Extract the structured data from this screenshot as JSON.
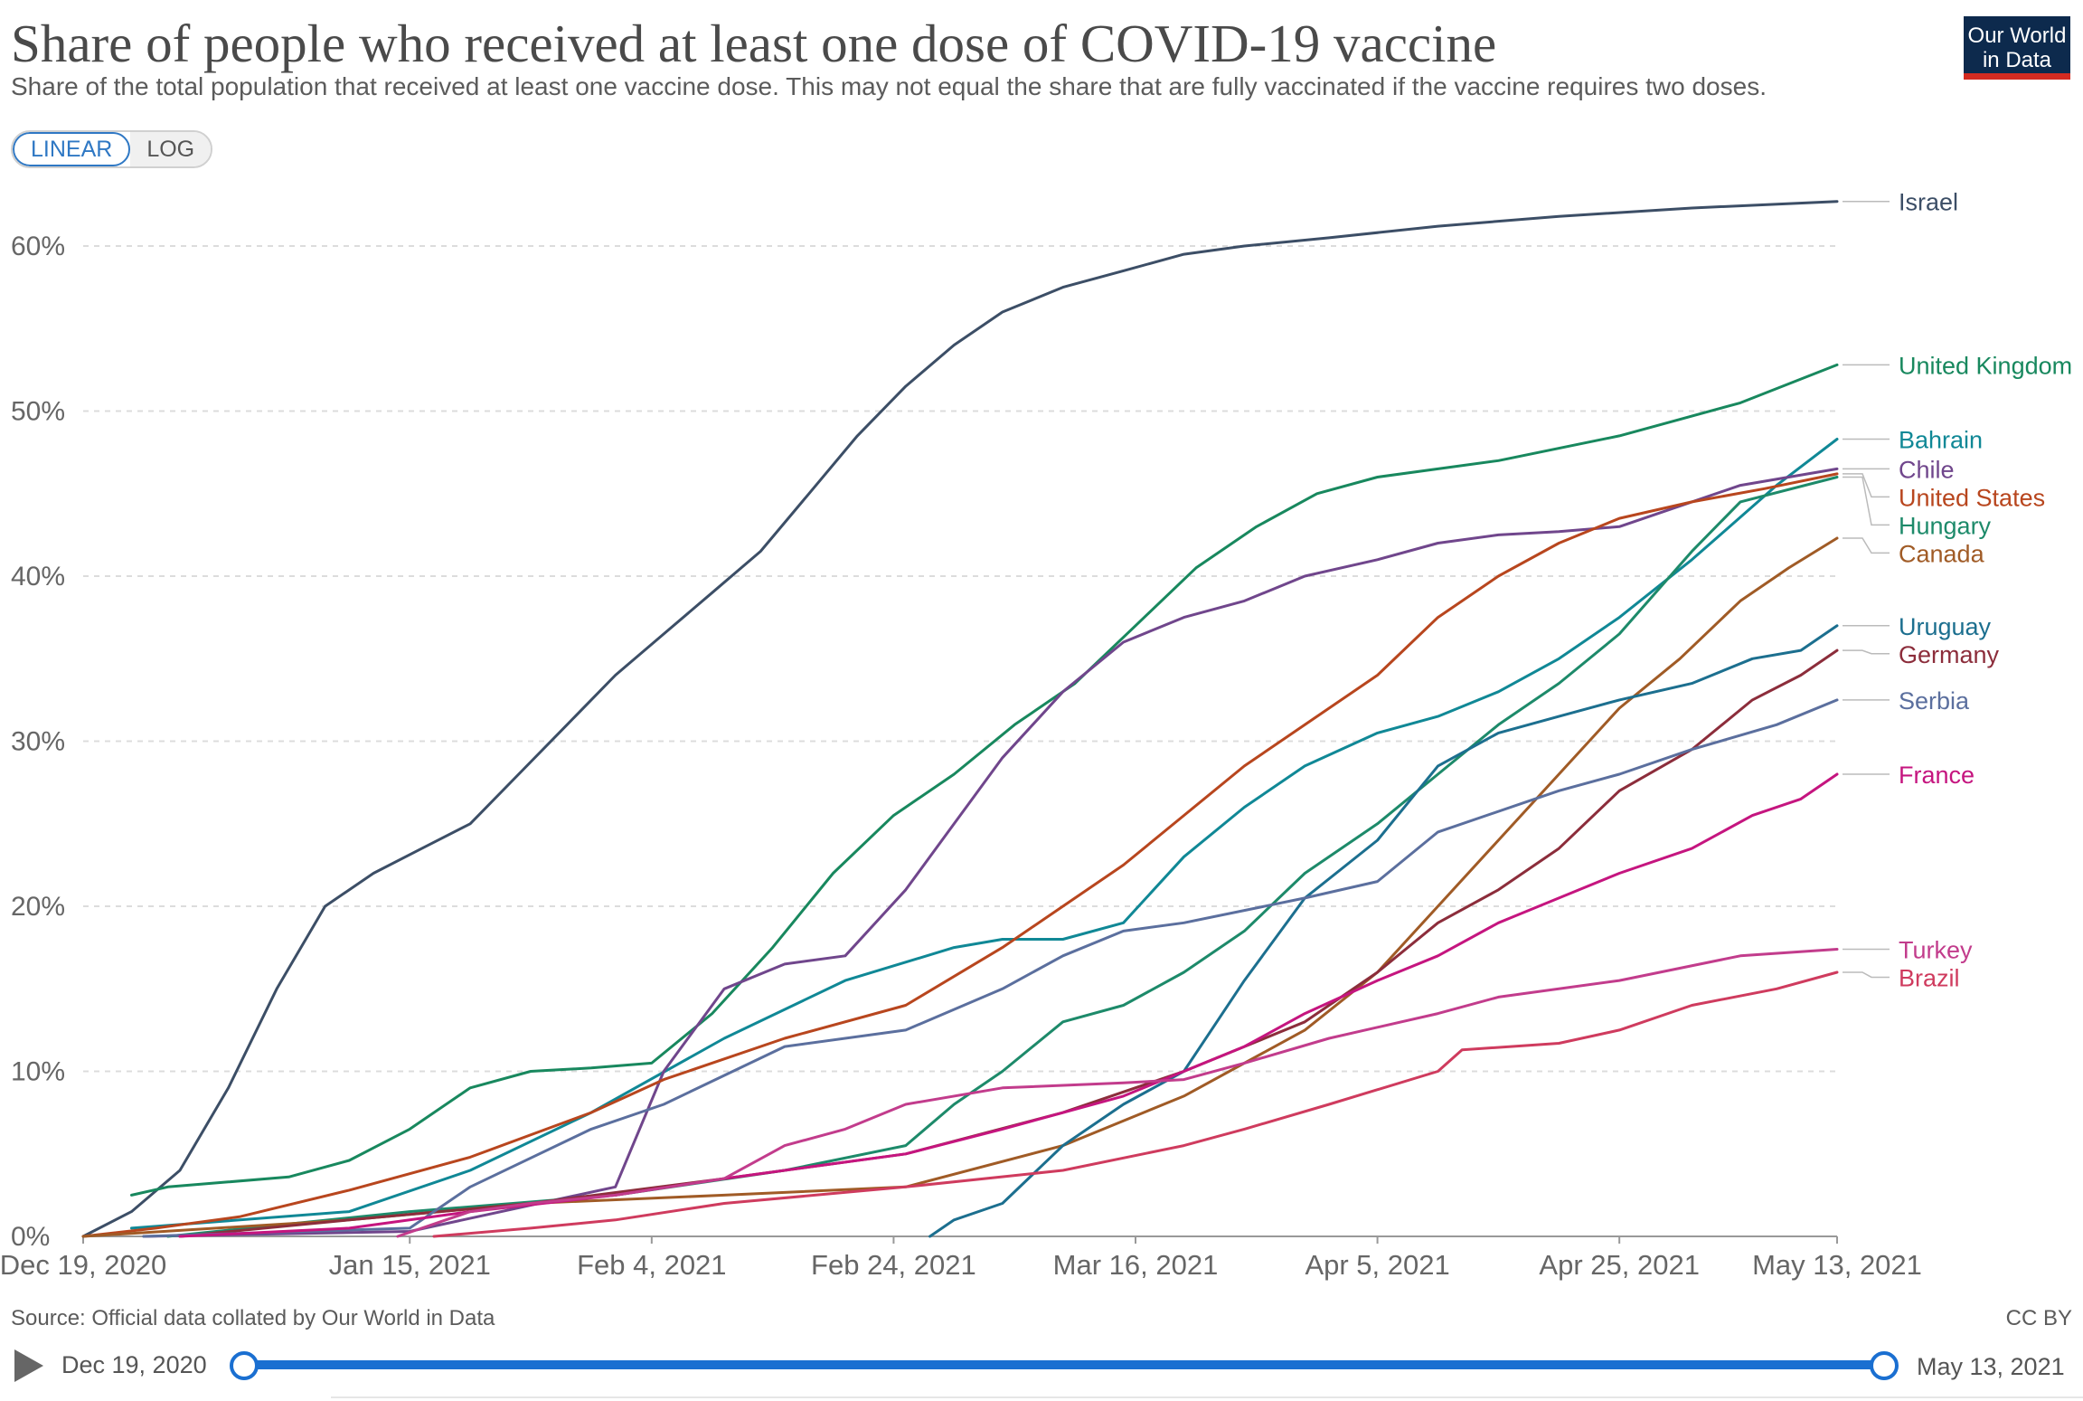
{
  "header": {
    "title": "Share of people who received at least one dose of COVID-19 vaccine",
    "subtitle": "Share of the total population that received at least one vaccine dose. This may not equal the share that are fully vaccinated if the vaccine requires two doses.",
    "logo_line1": "Our World",
    "logo_line2": "in Data"
  },
  "scale_toggle": {
    "linear": "LINEAR",
    "log": "LOG",
    "selected": "LINEAR"
  },
  "footer": {
    "source": "Source: Official data collated by Our World in Data",
    "license": "CC BY"
  },
  "timeline": {
    "start": "Dec 19, 2020",
    "end": "May 13, 2021"
  },
  "chart_data": {
    "type": "line",
    "title": "Share of people who received at least one dose of COVID-19 vaccine",
    "xlabel": "",
    "ylabel": "",
    "x_start": "2020-12-19",
    "x_end": "2021-05-13",
    "xlim": [
      "2020-12-19",
      "2021-05-13"
    ],
    "ylim": [
      0,
      64
    ],
    "y_ticks": [
      0,
      10,
      20,
      30,
      40,
      50,
      60
    ],
    "y_tick_labels": [
      "0%",
      "10%",
      "20%",
      "30%",
      "40%",
      "50%",
      "60%"
    ],
    "x_ticks": [
      "2020-12-19",
      "2021-01-15",
      "2021-02-04",
      "2021-02-24",
      "2021-03-16",
      "2021-04-05",
      "2021-04-25",
      "2021-05-13"
    ],
    "x_tick_labels": [
      "Dec 19, 2020",
      "Jan 15, 2021",
      "Feb 4, 2021",
      "Feb 24, 2021",
      "Mar 16, 2021",
      "Apr 5, 2021",
      "Apr 25, 2021",
      "May 13, 2021"
    ],
    "grid": "horizontal dashed",
    "legend": "right, line-end labels",
    "series": [
      {
        "name": "Israel",
        "color": "#3c4e66",
        "x": [
          "2020-12-19",
          "2020-12-23",
          "2020-12-27",
          "2020-12-31",
          "2021-01-04",
          "2021-01-08",
          "2021-01-12",
          "2021-01-16",
          "2021-01-20",
          "2021-01-24",
          "2021-01-28",
          "2021-02-01",
          "2021-02-05",
          "2021-02-09",
          "2021-02-13",
          "2021-02-17",
          "2021-02-21",
          "2021-02-25",
          "2021-03-01",
          "2021-03-05",
          "2021-03-10",
          "2021-03-15",
          "2021-03-20",
          "2021-03-25",
          "2021-04-01",
          "2021-04-10",
          "2021-04-20",
          "2021-05-01",
          "2021-05-13"
        ],
        "y": [
          0,
          1.5,
          4,
          9,
          15,
          20,
          22,
          23.5,
          25,
          28,
          31,
          34,
          36.5,
          39,
          41.5,
          45,
          48.5,
          51.5,
          54,
          56,
          57.5,
          58.5,
          59.5,
          60,
          60.5,
          61.2,
          61.8,
          62.3,
          62.7
        ]
      },
      {
        "name": "United Kingdom",
        "color": "#18885e",
        "x": [
          "2020-12-23",
          "2020-12-26",
          "2020-12-31",
          "2021-01-05",
          "2021-01-10",
          "2021-01-15",
          "2021-01-20",
          "2021-01-25",
          "2021-01-30",
          "2021-02-04",
          "2021-02-09",
          "2021-02-14",
          "2021-02-19",
          "2021-02-24",
          "2021-03-01",
          "2021-03-06",
          "2021-03-11",
          "2021-03-16",
          "2021-03-21",
          "2021-03-26",
          "2021-03-31",
          "2021-04-05",
          "2021-04-15",
          "2021-04-25",
          "2021-05-05",
          "2021-05-13"
        ],
        "y": [
          2.5,
          3,
          3.3,
          3.6,
          4.6,
          6.5,
          9,
          10,
          10.2,
          10.5,
          13.5,
          17.5,
          22,
          25.5,
          28,
          31,
          33.5,
          37,
          40.5,
          43,
          45,
          46,
          47,
          48.5,
          50.5,
          52.8
        ]
      },
      {
        "name": "Bahrain",
        "color": "#108896",
        "x": [
          "2020-12-23",
          "2021-01-10",
          "2021-01-20",
          "2021-01-30",
          "2021-02-10",
          "2021-02-20",
          "2021-03-01",
          "2021-03-05",
          "2021-03-10",
          "2021-03-15",
          "2021-03-20",
          "2021-03-25",
          "2021-03-30",
          "2021-04-05",
          "2021-04-10",
          "2021-04-15",
          "2021-04-20",
          "2021-04-25",
          "2021-05-01",
          "2021-05-08",
          "2021-05-13"
        ],
        "y": [
          0.5,
          1.5,
          4,
          7.5,
          12,
          15.5,
          17.5,
          18,
          18,
          19,
          23,
          26,
          28.5,
          30.5,
          31.5,
          33,
          35,
          37.5,
          41,
          45.5,
          48.3
        ]
      },
      {
        "name": "Chile",
        "color": "#70468c",
        "x": [
          "2020-12-24",
          "2021-01-15",
          "2021-02-01",
          "2021-02-05",
          "2021-02-10",
          "2021-02-15",
          "2021-02-20",
          "2021-02-25",
          "2021-03-01",
          "2021-03-05",
          "2021-03-10",
          "2021-03-15",
          "2021-03-20",
          "2021-03-25",
          "2021-03-30",
          "2021-04-05",
          "2021-04-10",
          "2021-04-15",
          "2021-04-20",
          "2021-04-25",
          "2021-05-01",
          "2021-05-05",
          "2021-05-13"
        ],
        "y": [
          0,
          0.3,
          3,
          10,
          15,
          16.5,
          17,
          21,
          25,
          29,
          33,
          36,
          37.5,
          38.5,
          40,
          41,
          42,
          42.5,
          42.7,
          43,
          44.5,
          45.5,
          46.5
        ]
      },
      {
        "name": "Hungary",
        "color": "#1d8a6a",
        "x": [
          "2020-12-26",
          "2021-01-15",
          "2021-02-01",
          "2021-02-15",
          "2021-02-25",
          "2021-03-01",
          "2021-03-05",
          "2021-03-10",
          "2021-03-15",
          "2021-03-20",
          "2021-03-25",
          "2021-03-30",
          "2021-04-05",
          "2021-04-10",
          "2021-04-15",
          "2021-04-20",
          "2021-04-25",
          "2021-05-01",
          "2021-05-05",
          "2021-05-13"
        ],
        "y": [
          0,
          1.5,
          2.5,
          4,
          5.5,
          8,
          10,
          13,
          14,
          16,
          18.5,
          22,
          25,
          28,
          31,
          33.5,
          36.5,
          41.5,
          44.5,
          46
        ]
      },
      {
        "name": "United States",
        "color": "#b8461e",
        "x": [
          "2020-12-19",
          "2020-12-25",
          "2021-01-01",
          "2021-01-10",
          "2021-01-20",
          "2021-01-30",
          "2021-02-05",
          "2021-02-15",
          "2021-02-25",
          "2021-03-05",
          "2021-03-10",
          "2021-03-15",
          "2021-03-20",
          "2021-03-25",
          "2021-03-30",
          "2021-04-05",
          "2021-04-10",
          "2021-04-15",
          "2021-04-20",
          "2021-04-25",
          "2021-05-01",
          "2021-05-07",
          "2021-05-13"
        ],
        "y": [
          0,
          0.5,
          1.2,
          2.8,
          4.8,
          7.5,
          9.5,
          12,
          14,
          17.5,
          20,
          22.5,
          25.5,
          28.5,
          31,
          34,
          37.5,
          40,
          42,
          43.5,
          44.5,
          45.3,
          46.2
        ]
      },
      {
        "name": "Canada",
        "color": "#a05b26",
        "x": [
          "2020-12-19",
          "2021-01-10",
          "2021-01-25",
          "2021-02-10",
          "2021-02-25",
          "2021-03-10",
          "2021-03-20",
          "2021-03-30",
          "2021-04-05",
          "2021-04-10",
          "2021-04-15",
          "2021-04-20",
          "2021-04-25",
          "2021-04-30",
          "2021-05-05",
          "2021-05-09",
          "2021-05-13"
        ],
        "y": [
          0,
          1,
          2,
          2.5,
          3,
          5.5,
          8.5,
          12.5,
          16,
          20,
          24,
          28,
          32,
          35,
          38.5,
          40.5,
          42.3
        ]
      },
      {
        "name": "Uruguay",
        "color": "#1c6f8f",
        "x": [
          "2021-02-27",
          "2021-03-01",
          "2021-03-05",
          "2021-03-10",
          "2021-03-15",
          "2021-03-20",
          "2021-03-25",
          "2021-03-30",
          "2021-04-05",
          "2021-04-10",
          "2021-04-15",
          "2021-04-20",
          "2021-04-25",
          "2021-05-01",
          "2021-05-06",
          "2021-05-10",
          "2021-05-13"
        ],
        "y": [
          0,
          1,
          2,
          5.5,
          8,
          10,
          15.5,
          20.5,
          24,
          28.5,
          30.5,
          31.5,
          32.5,
          33.5,
          35,
          35.5,
          37
        ]
      },
      {
        "name": "Germany",
        "color": "#8c2d3b",
        "x": [
          "2020-12-27",
          "2021-01-10",
          "2021-01-25",
          "2021-02-10",
          "2021-02-25",
          "2021-03-10",
          "2021-03-20",
          "2021-03-30",
          "2021-04-05",
          "2021-04-10",
          "2021-04-15",
          "2021-04-20",
          "2021-04-25",
          "2021-05-01",
          "2021-05-06",
          "2021-05-10",
          "2021-05-13"
        ],
        "y": [
          0,
          1,
          2,
          3.5,
          5,
          7.5,
          10,
          13,
          16,
          19,
          21,
          23.5,
          27,
          29.5,
          32.5,
          34,
          35.5
        ]
      },
      {
        "name": "Serbia",
        "color": "#5b6f9e",
        "x": [
          "2020-12-24",
          "2021-01-15",
          "2021-01-20",
          "2021-01-30",
          "2021-02-05",
          "2021-02-15",
          "2021-02-25",
          "2021-03-05",
          "2021-03-10",
          "2021-03-15",
          "2021-03-20",
          "2021-03-30",
          "2021-04-05",
          "2021-04-10",
          "2021-04-20",
          "2021-04-25",
          "2021-05-01",
          "2021-05-08",
          "2021-05-13"
        ],
        "y": [
          0,
          0.5,
          3,
          6.5,
          8,
          11.5,
          12.5,
          15,
          17,
          18.5,
          19,
          20.5,
          21.5,
          24.5,
          27,
          28,
          29.5,
          31,
          32.5
        ]
      },
      {
        "name": "France",
        "color": "#c5157f",
        "x": [
          "2020-12-27",
          "2021-01-10",
          "2021-01-20",
          "2021-02-01",
          "2021-02-10",
          "2021-02-20",
          "2021-02-25",
          "2021-03-05",
          "2021-03-15",
          "2021-03-20",
          "2021-03-25",
          "2021-03-30",
          "2021-04-05",
          "2021-04-10",
          "2021-04-15",
          "2021-04-20",
          "2021-04-25",
          "2021-05-01",
          "2021-05-06",
          "2021-05-10",
          "2021-05-13"
        ],
        "y": [
          0,
          0.5,
          1.5,
          2.5,
          3.5,
          4.5,
          5,
          6.5,
          8.5,
          10,
          11.5,
          13.5,
          15.5,
          17,
          19,
          20.5,
          22,
          23.5,
          25.5,
          26.5,
          28
        ]
      },
      {
        "name": "Turkey",
        "color": "#c23c8c",
        "x": [
          "2021-01-14",
          "2021-01-20",
          "2021-01-25",
          "2021-02-01",
          "2021-02-10",
          "2021-02-15",
          "2021-02-20",
          "2021-02-25",
          "2021-03-05",
          "2021-03-15",
          "2021-03-20",
          "2021-03-25",
          "2021-04-01",
          "2021-04-10",
          "2021-04-15",
          "2021-04-25",
          "2021-05-05",
          "2021-05-13"
        ],
        "y": [
          0,
          1.5,
          2,
          2.5,
          3.5,
          5.5,
          6.5,
          8,
          9,
          9.3,
          9.5,
          10.5,
          12,
          13.5,
          14.5,
          15.5,
          17,
          17.4
        ]
      },
      {
        "name": "Brazil",
        "color": "#cf3b5e",
        "x": [
          "2021-01-17",
          "2021-01-25",
          "2021-02-01",
          "2021-02-10",
          "2021-02-25",
          "2021-03-10",
          "2021-03-20",
          "2021-03-25",
          "2021-04-01",
          "2021-04-10",
          "2021-04-12",
          "2021-04-20",
          "2021-04-25",
          "2021-05-01",
          "2021-05-08",
          "2021-05-13"
        ],
        "y": [
          0,
          0.5,
          1,
          2,
          3,
          4,
          5.5,
          6.5,
          8,
          10,
          11.3,
          11.7,
          12.5,
          14,
          15,
          16
        ]
      }
    ]
  }
}
